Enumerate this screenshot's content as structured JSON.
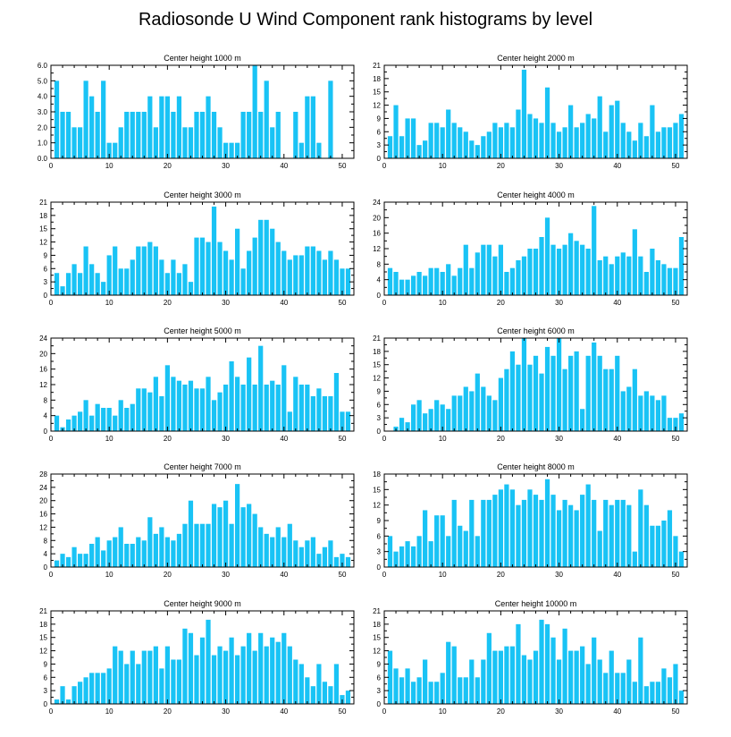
{
  "title": "Radiosonde U Wind Component rank histograms by level",
  "colors": {
    "bar": "#19C3F5",
    "axis": "#000000"
  },
  "chart_data": [
    {
      "type": "bar",
      "title": "Center height 1000 m",
      "xlim": [
        0,
        52
      ],
      "ylim": [
        0,
        6
      ],
      "x_ticks": [
        0,
        10,
        20,
        30,
        40,
        50
      ],
      "y_ticks": [
        0,
        1,
        2,
        3,
        4,
        5,
        6
      ],
      "y_tick_labels": [
        "0.0",
        "1.0",
        "2.0",
        "3.0",
        "4.0",
        "5.0",
        "6.0"
      ],
      "categories": [
        1,
        2,
        3,
        4,
        5,
        6,
        7,
        8,
        9,
        10,
        11,
        12,
        13,
        14,
        15,
        16,
        17,
        18,
        19,
        20,
        21,
        22,
        23,
        24,
        25,
        26,
        27,
        28,
        29,
        30,
        31,
        32,
        33,
        34,
        35,
        36,
        37,
        38,
        39,
        40,
        41,
        42,
        43,
        44,
        45,
        46,
        47,
        48,
        49,
        50,
        51
      ],
      "values": [
        5,
        3,
        3,
        2,
        2,
        5,
        4,
        3,
        5,
        1,
        1,
        2,
        3,
        3,
        3,
        3,
        4,
        2,
        4,
        4,
        3,
        4,
        2,
        2,
        3,
        3,
        4,
        3,
        2,
        1,
        1,
        1,
        3,
        3,
        6,
        3,
        5,
        2,
        3,
        0,
        0,
        3,
        1,
        4,
        4,
        1,
        0,
        5,
        0,
        0,
        0
      ]
    },
    {
      "type": "bar",
      "title": "Center height 2000 m",
      "xlim": [
        0,
        52
      ],
      "ylim": [
        0,
        21
      ],
      "x_ticks": [
        0,
        10,
        20,
        30,
        40,
        50
      ],
      "y_ticks": [
        0,
        3,
        6,
        9,
        12,
        15,
        18,
        21
      ],
      "y_tick_labels": [
        "0",
        "3",
        "6",
        "9",
        "12",
        "15",
        "18",
        "21"
      ],
      "categories": [
        1,
        2,
        3,
        4,
        5,
        6,
        7,
        8,
        9,
        10,
        11,
        12,
        13,
        14,
        15,
        16,
        17,
        18,
        19,
        20,
        21,
        22,
        23,
        24,
        25,
        26,
        27,
        28,
        29,
        30,
        31,
        32,
        33,
        34,
        35,
        36,
        37,
        38,
        39,
        40,
        41,
        42,
        43,
        44,
        45,
        46,
        47,
        48,
        49,
        50,
        51
      ],
      "values": [
        5,
        12,
        5,
        9,
        9,
        3,
        4,
        8,
        8,
        7,
        11,
        8,
        7,
        6,
        4,
        3,
        5,
        6,
        8,
        7,
        8,
        7,
        11,
        20,
        10,
        9,
        8,
        16,
        8,
        6,
        7,
        12,
        7,
        8,
        10,
        9,
        14,
        6,
        12,
        13,
        8,
        6,
        4,
        8,
        5,
        12,
        6,
        7,
        7,
        8,
        10
      ]
    },
    {
      "type": "bar",
      "title": "Center height 3000 m",
      "xlim": [
        0,
        52
      ],
      "ylim": [
        0,
        21
      ],
      "x_ticks": [
        0,
        10,
        20,
        30,
        40,
        50
      ],
      "y_ticks": [
        0,
        3,
        6,
        9,
        12,
        15,
        18,
        21
      ],
      "y_tick_labels": [
        "0",
        "3",
        "6",
        "9",
        "12",
        "15",
        "18",
        "21"
      ],
      "categories": [
        1,
        2,
        3,
        4,
        5,
        6,
        7,
        8,
        9,
        10,
        11,
        12,
        13,
        14,
        15,
        16,
        17,
        18,
        19,
        20,
        21,
        22,
        23,
        24,
        25,
        26,
        27,
        28,
        29,
        30,
        31,
        32,
        33,
        34,
        35,
        36,
        37,
        38,
        39,
        40,
        41,
        42,
        43,
        44,
        45,
        46,
        47,
        48,
        49,
        50,
        51
      ],
      "values": [
        5,
        2,
        5,
        7,
        5,
        11,
        7,
        5,
        3,
        9,
        11,
        6,
        6,
        8,
        11,
        11,
        12,
        11,
        8,
        5,
        8,
        5,
        7,
        3,
        13,
        13,
        12,
        20,
        12,
        10,
        8,
        15,
        6,
        10,
        13,
        17,
        17,
        15,
        12,
        10,
        8,
        9,
        9,
        11,
        11,
        10,
        8,
        10,
        8,
        6,
        6
      ]
    },
    {
      "type": "bar",
      "title": "Center height 4000 m",
      "xlim": [
        0,
        52
      ],
      "ylim": [
        0,
        24
      ],
      "x_ticks": [
        0,
        10,
        20,
        30,
        40,
        50
      ],
      "y_ticks": [
        0,
        4,
        8,
        12,
        16,
        20,
        24
      ],
      "y_tick_labels": [
        "0",
        "4",
        "8",
        "12",
        "16",
        "20",
        "24"
      ],
      "categories": [
        1,
        2,
        3,
        4,
        5,
        6,
        7,
        8,
        9,
        10,
        11,
        12,
        13,
        14,
        15,
        16,
        17,
        18,
        19,
        20,
        21,
        22,
        23,
        24,
        25,
        26,
        27,
        28,
        29,
        30,
        31,
        32,
        33,
        34,
        35,
        36,
        37,
        38,
        39,
        40,
        41,
        42,
        43,
        44,
        45,
        46,
        47,
        48,
        49,
        50,
        51
      ],
      "values": [
        7,
        6,
        4,
        4,
        5,
        6,
        5,
        7,
        7,
        6,
        8,
        5,
        7,
        13,
        7,
        11,
        13,
        13,
        10,
        13,
        6,
        7,
        9,
        10,
        12,
        12,
        15,
        20,
        13,
        12,
        13,
        16,
        14,
        13,
        12,
        23,
        9,
        10,
        8,
        10,
        11,
        10,
        17,
        10,
        6,
        12,
        9,
        8,
        7,
        7,
        15
      ]
    },
    {
      "type": "bar",
      "title": "Center height 5000 m",
      "xlim": [
        0,
        52
      ],
      "ylim": [
        0,
        24
      ],
      "x_ticks": [
        0,
        10,
        20,
        30,
        40,
        50
      ],
      "y_ticks": [
        0,
        4,
        8,
        12,
        16,
        20,
        24
      ],
      "y_tick_labels": [
        "0",
        "4",
        "8",
        "12",
        "16",
        "20",
        "24"
      ],
      "categories": [
        1,
        2,
        3,
        4,
        5,
        6,
        7,
        8,
        9,
        10,
        11,
        12,
        13,
        14,
        15,
        16,
        17,
        18,
        19,
        20,
        21,
        22,
        23,
        24,
        25,
        26,
        27,
        28,
        29,
        30,
        31,
        32,
        33,
        34,
        35,
        36,
        37,
        38,
        39,
        40,
        41,
        42,
        43,
        44,
        45,
        46,
        47,
        48,
        49,
        50,
        51
      ],
      "values": [
        4,
        1,
        3,
        4,
        5,
        8,
        4,
        7,
        6,
        6,
        4,
        8,
        6,
        7,
        11,
        11,
        10,
        14,
        9,
        17,
        14,
        13,
        12,
        13,
        11,
        11,
        14,
        8,
        10,
        12,
        18,
        14,
        12,
        19,
        12,
        22,
        12,
        13,
        12,
        17,
        5,
        14,
        12,
        12,
        9,
        11,
        9,
        9,
        15,
        5,
        5
      ]
    },
    {
      "type": "bar",
      "title": "Center height 6000 m",
      "xlim": [
        0,
        52
      ],
      "ylim": [
        0,
        21
      ],
      "x_ticks": [
        0,
        10,
        20,
        30,
        40,
        50
      ],
      "y_ticks": [
        0,
        3,
        6,
        9,
        12,
        15,
        18,
        21
      ],
      "y_tick_labels": [
        "0",
        "3",
        "6",
        "9",
        "12",
        "15",
        "18",
        "21"
      ],
      "categories": [
        1,
        2,
        3,
        4,
        5,
        6,
        7,
        8,
        9,
        10,
        11,
        12,
        13,
        14,
        15,
        16,
        17,
        18,
        19,
        20,
        21,
        22,
        23,
        24,
        25,
        26,
        27,
        28,
        29,
        30,
        31,
        32,
        33,
        34,
        35,
        36,
        37,
        38,
        39,
        40,
        41,
        42,
        43,
        44,
        45,
        46,
        47,
        48,
        49,
        50,
        51
      ],
      "values": [
        0,
        1,
        3,
        2,
        6,
        7,
        4,
        5,
        7,
        6,
        5,
        8,
        8,
        10,
        9,
        13,
        10,
        8,
        7,
        12,
        14,
        18,
        15,
        21,
        15,
        17,
        13,
        19,
        17,
        21,
        14,
        17,
        18,
        5,
        17,
        20,
        17,
        14,
        14,
        17,
        9,
        10,
        14,
        8,
        9,
        8,
        7,
        8,
        3,
        3,
        4
      ]
    },
    {
      "type": "bar",
      "title": "Center height 7000 m",
      "xlim": [
        0,
        52
      ],
      "ylim": [
        0,
        28
      ],
      "x_ticks": [
        0,
        10,
        20,
        30,
        40,
        50
      ],
      "y_ticks": [
        0,
        4,
        8,
        12,
        16,
        20,
        24,
        28
      ],
      "y_tick_labels": [
        "0",
        "4",
        "8",
        "12",
        "16",
        "20",
        "24",
        "28"
      ],
      "categories": [
        1,
        2,
        3,
        4,
        5,
        6,
        7,
        8,
        9,
        10,
        11,
        12,
        13,
        14,
        15,
        16,
        17,
        18,
        19,
        20,
        21,
        22,
        23,
        24,
        25,
        26,
        27,
        28,
        29,
        30,
        31,
        32,
        33,
        34,
        35,
        36,
        37,
        38,
        39,
        40,
        41,
        42,
        43,
        44,
        45,
        46,
        47,
        48,
        49,
        50,
        51
      ],
      "values": [
        2,
        4,
        3,
        6,
        4,
        4,
        7,
        9,
        5,
        8,
        9,
        12,
        7,
        7,
        9,
        8,
        15,
        10,
        12,
        9,
        8,
        10,
        13,
        20,
        13,
        13,
        13,
        19,
        18,
        20,
        13,
        25,
        18,
        19,
        16,
        12,
        10,
        9,
        12,
        9,
        13,
        8,
        6,
        8,
        9,
        4,
        6,
        8,
        3,
        4,
        3
      ]
    },
    {
      "type": "bar",
      "title": "Center height 8000 m",
      "xlim": [
        0,
        52
      ],
      "ylim": [
        0,
        18
      ],
      "x_ticks": [
        0,
        10,
        20,
        30,
        40,
        50
      ],
      "y_ticks": [
        0,
        3,
        6,
        9,
        12,
        15,
        18
      ],
      "y_tick_labels": [
        "0",
        "3",
        "6",
        "9",
        "12",
        "15",
        "18"
      ],
      "categories": [
        1,
        2,
        3,
        4,
        5,
        6,
        7,
        8,
        9,
        10,
        11,
        12,
        13,
        14,
        15,
        16,
        17,
        18,
        19,
        20,
        21,
        22,
        23,
        24,
        25,
        26,
        27,
        28,
        29,
        30,
        31,
        32,
        33,
        34,
        35,
        36,
        37,
        38,
        39,
        40,
        41,
        42,
        43,
        44,
        45,
        46,
        47,
        48,
        49,
        50,
        51
      ],
      "values": [
        6,
        3,
        4,
        5,
        4,
        6,
        11,
        5,
        10,
        10,
        6,
        13,
        8,
        7,
        13,
        6,
        13,
        13,
        14,
        15,
        16,
        15,
        12,
        13,
        15,
        14,
        13,
        17,
        14,
        11,
        13,
        12,
        11,
        14,
        16,
        13,
        7,
        13,
        12,
        13,
        13,
        12,
        3,
        15,
        12,
        8,
        8,
        9,
        11,
        6,
        3
      ]
    },
    {
      "type": "bar",
      "title": "Center height 9000 m",
      "xlim": [
        0,
        52
      ],
      "ylim": [
        0,
        21
      ],
      "x_ticks": [
        0,
        10,
        20,
        30,
        40,
        50
      ],
      "y_ticks": [
        0,
        3,
        6,
        9,
        12,
        15,
        18,
        21
      ],
      "y_tick_labels": [
        "0",
        "3",
        "6",
        "9",
        "12",
        "15",
        "18",
        "21"
      ],
      "categories": [
        1,
        2,
        3,
        4,
        5,
        6,
        7,
        8,
        9,
        10,
        11,
        12,
        13,
        14,
        15,
        16,
        17,
        18,
        19,
        20,
        21,
        22,
        23,
        24,
        25,
        26,
        27,
        28,
        29,
        30,
        31,
        32,
        33,
        34,
        35,
        36,
        37,
        38,
        39,
        40,
        41,
        42,
        43,
        44,
        45,
        46,
        47,
        48,
        49,
        50,
        51
      ],
      "values": [
        1,
        4,
        1,
        4,
        5,
        6,
        7,
        7,
        7,
        8,
        13,
        12,
        9,
        12,
        9,
        12,
        12,
        13,
        8,
        13,
        10,
        10,
        17,
        16,
        11,
        15,
        19,
        11,
        13,
        12,
        15,
        11,
        13,
        16,
        12,
        16,
        13,
        15,
        14,
        16,
        13,
        10,
        9,
        6,
        4,
        9,
        5,
        4,
        9,
        2,
        3
      ]
    },
    {
      "type": "bar",
      "title": "Center height 10000 m",
      "xlim": [
        0,
        52
      ],
      "ylim": [
        0,
        21
      ],
      "x_ticks": [
        0,
        10,
        20,
        30,
        40,
        50
      ],
      "y_ticks": [
        0,
        3,
        6,
        9,
        12,
        15,
        18,
        21
      ],
      "y_tick_labels": [
        "0",
        "3",
        "6",
        "9",
        "12",
        "15",
        "18",
        "21"
      ],
      "categories": [
        1,
        2,
        3,
        4,
        5,
        6,
        7,
        8,
        9,
        10,
        11,
        12,
        13,
        14,
        15,
        16,
        17,
        18,
        19,
        20,
        21,
        22,
        23,
        24,
        25,
        26,
        27,
        28,
        29,
        30,
        31,
        32,
        33,
        34,
        35,
        36,
        37,
        38,
        39,
        40,
        41,
        42,
        43,
        44,
        45,
        46,
        47,
        48,
        49,
        50,
        51
      ],
      "values": [
        12,
        8,
        6,
        8,
        5,
        6,
        10,
        5,
        5,
        7,
        14,
        13,
        6,
        6,
        10,
        6,
        10,
        16,
        12,
        12,
        13,
        13,
        18,
        11,
        10,
        12,
        19,
        18,
        15,
        10,
        17,
        12,
        12,
        13,
        9,
        15,
        10,
        7,
        12,
        7,
        7,
        10,
        5,
        15,
        4,
        5,
        5,
        8,
        6,
        9,
        3
      ]
    }
  ]
}
